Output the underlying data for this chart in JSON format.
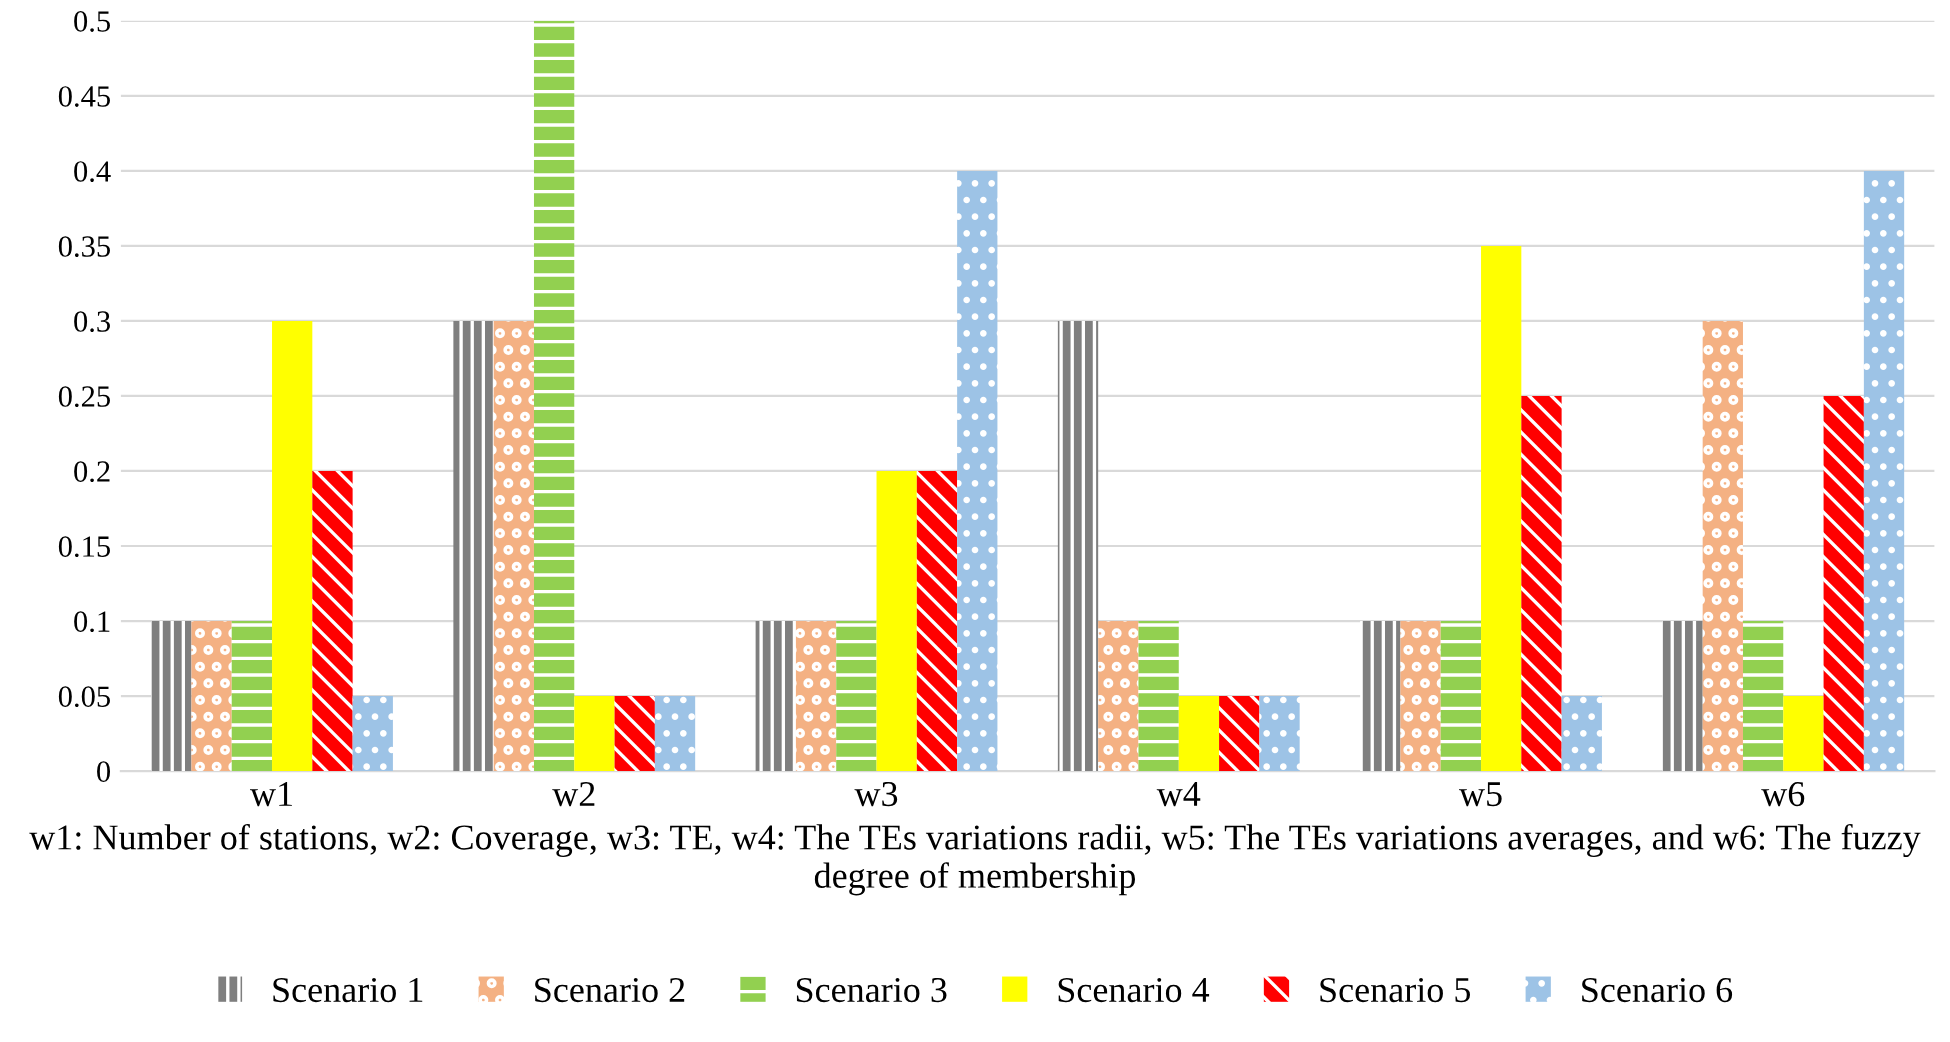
{
  "chart_data": {
    "type": "bar",
    "categories": [
      "w1",
      "w2",
      "w3",
      "w4",
      "w5",
      "w6"
    ],
    "xlabel": "w1: Number of stations, w2: Coverage, w3: TE, w4: The TEs variations radii, w5: The TEs variations averages, and w6: The fuzzy degree of membership",
    "series": [
      {
        "name": "Scenario 1",
        "color": "#7f7f7f",
        "values": [
          0.1,
          0.3,
          0.1,
          0.3,
          0.1,
          0.1
        ]
      },
      {
        "name": "Scenario 2",
        "color": "#f4b183",
        "values": [
          0.1,
          0.3,
          0.1,
          0.1,
          0.1,
          0.3
        ]
      },
      {
        "name": "Scenario 3",
        "color": "#92d050",
        "values": [
          0.1,
          0.5,
          0.1,
          0.1,
          0.1,
          0.1
        ]
      },
      {
        "name": "Scenario 4",
        "color": "#ffff00",
        "values": [
          0.3,
          0.05,
          0.2,
          0.05,
          0.35,
          0.05
        ]
      },
      {
        "name": "Scenario 5",
        "color": "#ff0000",
        "values": [
          0.2,
          0.05,
          0.2,
          0.05,
          0.25,
          0.25
        ]
      },
      {
        "name": "Scenario 6",
        "color": "#9dc3e6",
        "values": [
          0.05,
          0.05,
          0.4,
          0.05,
          0.05,
          0.4
        ]
      }
    ],
    "ylim": [
      0,
      0.5
    ],
    "yticks": [
      0,
      0.05,
      0.1,
      0.15,
      0.2,
      0.25,
      0.3,
      0.35,
      0.4,
      0.45,
      0.5
    ],
    "grid": "y",
    "legend": "bottom"
  }
}
